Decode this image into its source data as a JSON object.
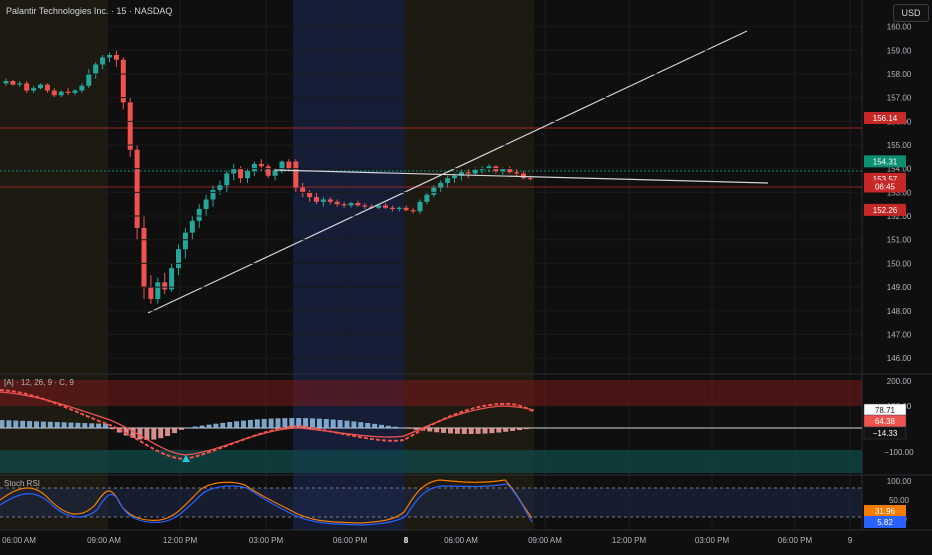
{
  "header": {
    "title": "Palantir Technologies Inc. · 15 · NASDAQ",
    "currency": "USD"
  },
  "colors": {
    "bg": "#0f0f0f",
    "up": "#26a69a",
    "down": "#ef5350",
    "session_pre": "#2a2414",
    "session_blue": "#16213d",
    "grid": "#1c1c1c"
  },
  "price_axis": {
    "ticks": [
      "160.00",
      "159.00",
      "158.00",
      "157.00",
      "156.00",
      "155.00",
      "154.00",
      "153.00",
      "152.00",
      "151.00",
      "150.00",
      "149.00",
      "148.00",
      "147.00",
      "146.00"
    ],
    "min": 145.5,
    "max": 160.7
  },
  "price_badges": [
    {
      "label": "156.14",
      "value": 156.14,
      "color": "#c62828",
      "text_color": "#ffffff"
    },
    {
      "label": "154.31",
      "value": 154.31,
      "color": "#0c8f73",
      "text_color": "#ffffff"
    },
    {
      "label": "153.57",
      "value": 153.57,
      "color": "#c62828",
      "text_color": "#ffffff"
    },
    {
      "label": "06:45",
      "value": 153.25,
      "color": "#c62828",
      "text_color": "#ffffff"
    },
    {
      "label": "152.26",
      "value": 152.26,
      "color": "#c62828",
      "text_color": "#ffffff"
    }
  ],
  "macd": {
    "label": "[A] · 12, 26, 9 · C, 9",
    "ticks": [
      "200.00",
      "100.00",
      "−100.00"
    ],
    "badges": [
      {
        "label": "78.71",
        "color": "#ffffff",
        "text_color": "#131313"
      },
      {
        "label": "64.38",
        "color": "#ef5350",
        "text_color": "#ffffff"
      },
      {
        "label": "−14.33",
        "color": "#131313",
        "text_color": "#ffffff"
      }
    ]
  },
  "stoch": {
    "label": "Stoch RSI",
    "ticks": [
      "100.00",
      "50.00",
      "0.00"
    ],
    "badges": [
      {
        "label": "31.96",
        "color": "#f57c00",
        "text_color": "#ffffff"
      },
      {
        "label": "5.82",
        "color": "#2962ff",
        "text_color": "#ffffff"
      }
    ]
  },
  "time_axis": [
    {
      "label": "06:00 AM",
      "bold": false
    },
    {
      "label": "09:00 AM",
      "bold": false
    },
    {
      "label": "12:00 PM",
      "bold": false
    },
    {
      "label": "03:00 PM",
      "bold": false
    },
    {
      "label": "06:00 PM",
      "bold": false
    },
    {
      "label": "8",
      "bold": true
    },
    {
      "label": "06:00 AM",
      "bold": false
    },
    {
      "label": "09:00 AM",
      "bold": false
    },
    {
      "label": "12:00 PM",
      "bold": false
    },
    {
      "label": "03:00 PM",
      "bold": false
    },
    {
      "label": "06:00 PM",
      "bold": false
    },
    {
      "label": "9",
      "bold": false
    }
  ],
  "chart_data": {
    "type": "candlestick",
    "candles": [
      [
        157.6,
        157.8,
        157.5,
        157.7
      ],
      [
        157.7,
        157.75,
        157.5,
        157.55
      ],
      [
        157.55,
        157.7,
        157.45,
        157.6
      ],
      [
        157.6,
        157.7,
        157.2,
        157.3
      ],
      [
        157.3,
        157.5,
        157.2,
        157.4
      ],
      [
        157.4,
        157.6,
        157.35,
        157.55
      ],
      [
        157.55,
        157.6,
        157.2,
        157.3
      ],
      [
        157.3,
        157.4,
        157.0,
        157.1
      ],
      [
        157.1,
        157.3,
        157.0,
        157.25
      ],
      [
        157.25,
        157.4,
        157.1,
        157.2
      ],
      [
        157.2,
        157.35,
        157.1,
        157.3
      ],
      [
        157.3,
        157.6,
        157.2,
        157.5
      ],
      [
        157.5,
        158.2,
        157.4,
        158.0
      ],
      [
        158.0,
        158.5,
        157.8,
        158.4
      ],
      [
        158.4,
        158.8,
        158.2,
        158.7
      ],
      [
        158.7,
        158.9,
        158.5,
        158.8
      ],
      [
        158.8,
        159.0,
        158.3,
        158.6
      ],
      [
        158.6,
        158.7,
        156.5,
        156.8
      ],
      [
        156.8,
        157.0,
        154.5,
        154.8
      ],
      [
        154.8,
        155.0,
        151.0,
        151.5
      ],
      [
        151.5,
        152.0,
        148.5,
        149.0
      ],
      [
        149.0,
        149.5,
        148.3,
        148.5
      ],
      [
        148.5,
        149.4,
        148.3,
        149.2
      ],
      [
        149.2,
        149.6,
        148.7,
        148.9
      ],
      [
        148.9,
        150.0,
        148.8,
        149.8
      ],
      [
        149.8,
        150.8,
        149.5,
        150.6
      ],
      [
        150.6,
        151.5,
        150.2,
        151.3
      ],
      [
        151.3,
        152.0,
        151.0,
        151.8
      ],
      [
        151.8,
        152.5,
        151.5,
        152.3
      ],
      [
        152.3,
        152.9,
        152.0,
        152.7
      ],
      [
        152.7,
        153.3,
        152.4,
        153.1
      ],
      [
        153.1,
        153.5,
        152.9,
        153.3
      ],
      [
        153.3,
        153.9,
        153.0,
        153.8
      ],
      [
        153.8,
        154.2,
        153.5,
        154.0
      ],
      [
        154.0,
        154.1,
        153.4,
        153.6
      ],
      [
        153.6,
        154.0,
        153.4,
        153.9
      ],
      [
        153.9,
        154.3,
        153.7,
        154.2
      ],
      [
        154.2,
        154.4,
        153.9,
        154.1
      ],
      [
        154.1,
        154.2,
        153.6,
        153.7
      ],
      [
        153.7,
        154.0,
        153.5,
        153.9
      ],
      [
        153.9,
        154.35,
        153.8,
        154.3
      ],
      [
        154.3,
        154.4,
        153.9,
        154.0
      ],
      [
        154.3,
        154.4,
        153.0,
        153.2
      ],
      [
        153.2,
        153.4,
        152.8,
        153.0
      ],
      [
        153.0,
        153.1,
        152.6,
        152.8
      ],
      [
        152.8,
        153.0,
        152.5,
        152.6
      ],
      [
        152.6,
        152.8,
        152.4,
        152.7
      ],
      [
        152.7,
        152.8,
        152.5,
        152.6
      ],
      [
        152.6,
        152.7,
        152.4,
        152.5
      ],
      [
        152.5,
        152.6,
        152.35,
        152.45
      ],
      [
        152.45,
        152.6,
        152.35,
        152.55
      ],
      [
        152.55,
        152.65,
        152.4,
        152.45
      ],
      [
        152.45,
        152.55,
        152.3,
        152.4
      ],
      [
        152.4,
        152.5,
        152.3,
        152.35
      ],
      [
        152.35,
        152.5,
        152.3,
        152.45
      ],
      [
        152.45,
        152.55,
        152.3,
        152.35
      ],
      [
        152.35,
        152.45,
        152.2,
        152.3
      ],
      [
        152.3,
        152.4,
        152.2,
        152.35
      ],
      [
        152.35,
        152.45,
        152.2,
        152.25
      ],
      [
        152.25,
        152.35,
        152.1,
        152.2
      ],
      [
        152.2,
        152.7,
        152.1,
        152.6
      ],
      [
        152.6,
        153.0,
        152.5,
        152.9
      ],
      [
        152.9,
        153.3,
        152.8,
        153.2
      ],
      [
        153.2,
        153.5,
        153.0,
        153.4
      ],
      [
        153.4,
        153.7,
        153.2,
        153.6
      ],
      [
        153.6,
        153.8,
        153.4,
        153.7
      ],
      [
        153.7,
        153.95,
        153.5,
        153.85
      ],
      [
        153.85,
        154.0,
        153.6,
        153.8
      ],
      [
        153.8,
        154.05,
        153.7,
        153.95
      ],
      [
        153.95,
        154.1,
        153.8,
        154.0
      ],
      [
        154.0,
        154.2,
        153.85,
        154.1
      ],
      [
        154.1,
        154.15,
        153.8,
        153.9
      ],
      [
        153.9,
        154.05,
        153.75,
        154.0
      ],
      [
        154.0,
        154.1,
        153.8,
        153.85
      ],
      [
        153.85,
        154.0,
        153.7,
        153.8
      ],
      [
        153.8,
        153.9,
        153.55,
        153.6
      ],
      [
        153.6,
        153.7,
        153.5,
        153.57
      ]
    ]
  }
}
